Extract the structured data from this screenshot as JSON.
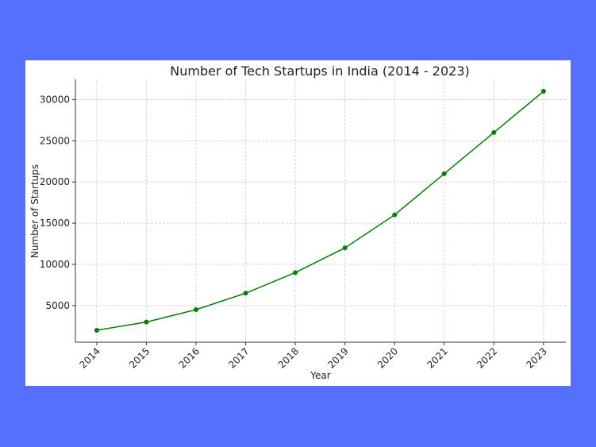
{
  "chart_data": {
    "type": "line",
    "title": "Number of Tech Startups in India (2014 - 2023)",
    "xlabel": "Year",
    "ylabel": "Number of Startups",
    "x": [
      2014,
      2015,
      2016,
      2017,
      2018,
      2019,
      2020,
      2021,
      2022,
      2023
    ],
    "series": [
      {
        "values": [
          2000,
          3000,
          4500,
          6500,
          9000,
          12000,
          16000,
          21000,
          26000,
          31000
        ],
        "color": "#008000",
        "marker": "circle"
      }
    ],
    "x_ticks": [
      "2014",
      "2015",
      "2016",
      "2017",
      "2018",
      "2019",
      "2020",
      "2021",
      "2022",
      "2023"
    ],
    "y_ticks": [
      5000,
      10000,
      15000,
      20000,
      25000,
      30000
    ],
    "xlim": [
      2013.57,
      2023.45
    ],
    "ylim": [
      550,
      32450
    ],
    "grid": true,
    "grid_style": "dashed",
    "background_color": "#5570ff"
  }
}
